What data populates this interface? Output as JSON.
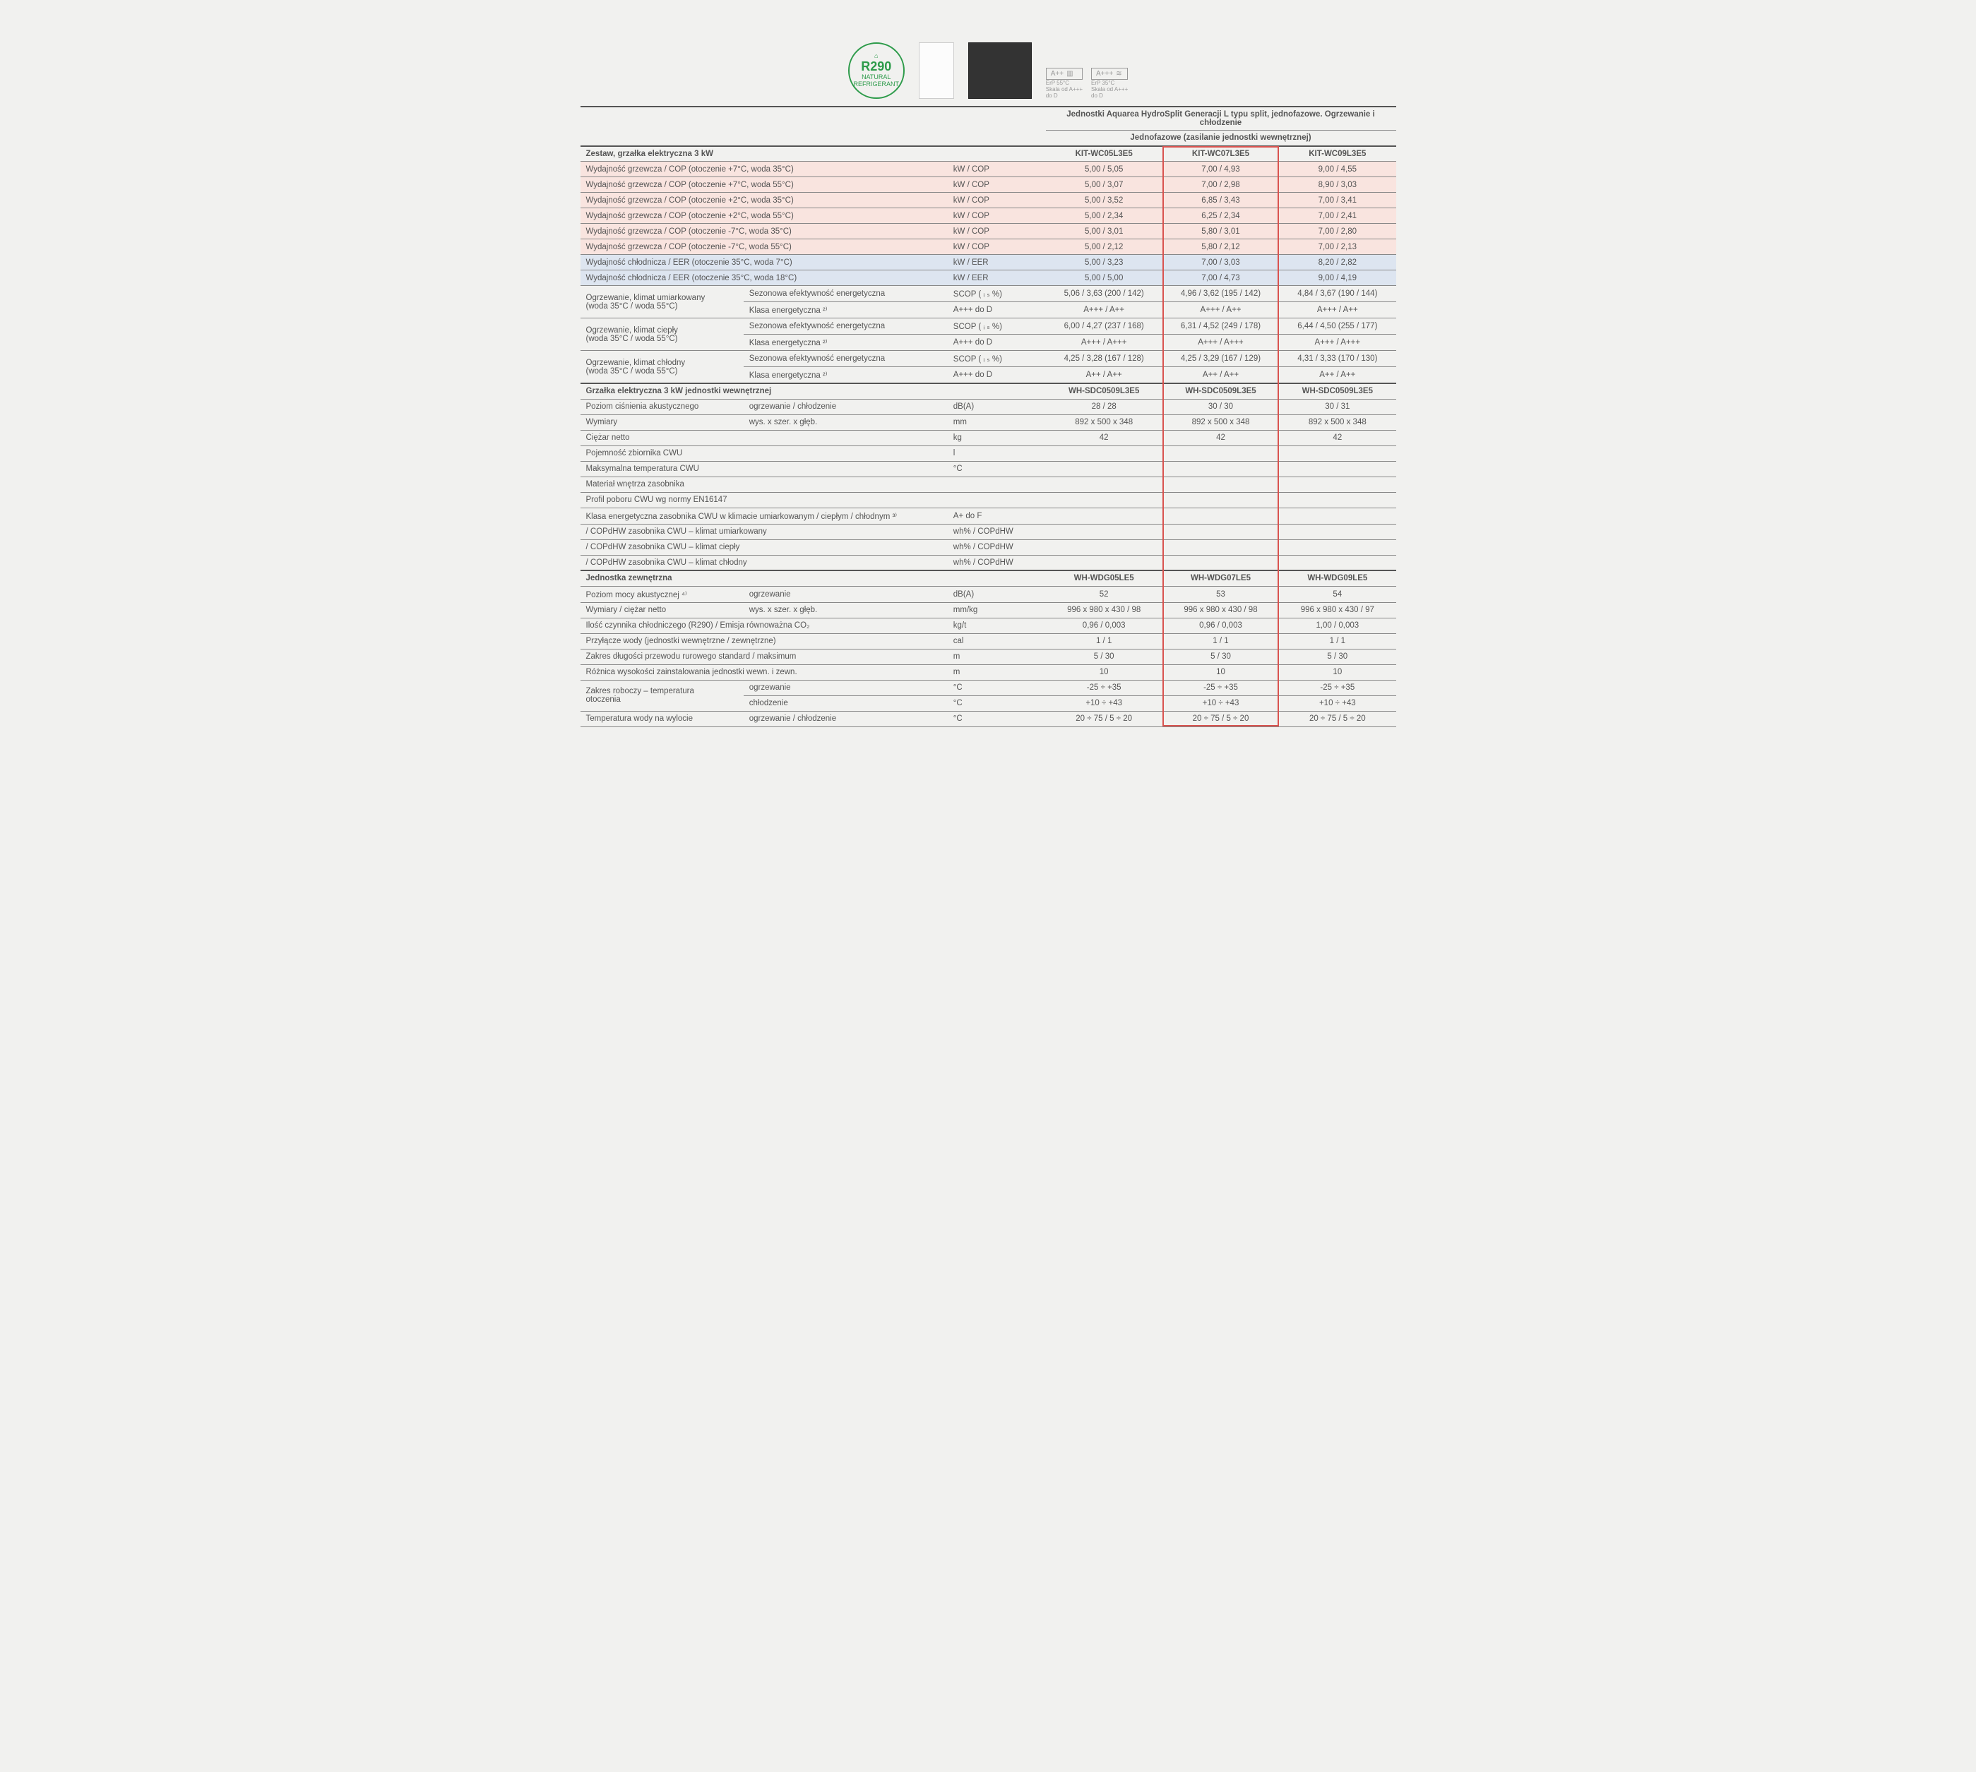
{
  "refrigerant_badge": {
    "main": "R290",
    "sub1": "NATURAL",
    "sub2": "REFRIGERANT"
  },
  "erp1": {
    "class": "A++",
    "line1": "ErP 55°C",
    "line2": "Skala od A+++",
    "line3": "do D"
  },
  "erp2": {
    "class": "A+++",
    "line1": "ErP 35°C",
    "line2": "Skala od A+++",
    "line3": "do D"
  },
  "main_title": "Jednostki Aquarea HydroSplit Generacji L typu split, jednofazowe. Ogrzewanie i chłodzenie",
  "sub_title": "Jednofazowe (zasilanie jednostki wewnętrznej)",
  "kit_header": "Zestaw, grzałka elektryczna 3 kW",
  "kits": [
    "KIT-WC05L3E5",
    "KIT-WC07L3E5",
    "KIT-WC09L3E5"
  ],
  "rows_heat": [
    {
      "label": "Wydajność grzewcza / COP (otoczenie +7°C, woda 35°C)",
      "unit": "kW / COP",
      "vals": [
        "5,00 / 5,05",
        "7,00 / 4,93",
        "9,00 / 4,55"
      ]
    },
    {
      "label": "Wydajność grzewcza / COP (otoczenie +7°C, woda 55°C)",
      "unit": "kW / COP",
      "vals": [
        "5,00 / 3,07",
        "7,00 / 2,98",
        "8,90 / 3,03"
      ]
    },
    {
      "label": "Wydajność grzewcza / COP (otoczenie +2°C, woda 35°C)",
      "unit": "kW / COP",
      "vals": [
        "5,00 / 3,52",
        "6,85 / 3,43",
        "7,00 / 3,41"
      ]
    },
    {
      "label": "Wydajność grzewcza / COP (otoczenie +2°C, woda 55°C)",
      "unit": "kW / COP",
      "vals": [
        "5,00 / 2,34",
        "6,25 / 2,34",
        "7,00 / 2,41"
      ]
    },
    {
      "label": "Wydajność grzewcza / COP (otoczenie -7°C, woda 35°C)",
      "unit": "kW / COP",
      "vals": [
        "5,00 / 3,01",
        "5,80 / 3,01",
        "7,00 / 2,80"
      ]
    },
    {
      "label": "Wydajność grzewcza / COP (otoczenie -7°C, woda 55°C)",
      "unit": "kW / COP",
      "vals": [
        "5,00 / 2,12",
        "5,80 / 2,12",
        "7,00 / 2,13"
      ]
    }
  ],
  "rows_cool": [
    {
      "label": "Wydajność chłodnicza / EER (otoczenie 35°C, woda 7°C)",
      "unit": "kW / EER",
      "vals": [
        "5,00 / 3,23",
        "7,00 / 3,03",
        "8,20 / 2,82"
      ]
    },
    {
      "label": "Wydajność chłodnicza / EER (otoczenie 35°C, woda 18°C)",
      "unit": "kW / EER",
      "vals": [
        "5,00 / 5,00",
        "7,00 / 4,73",
        "9,00 / 4,19"
      ]
    }
  ],
  "climate_rows": [
    {
      "group": "Ogrzewanie, klimat umiarkowany\n(woda 35°C / woda 55°C)",
      "sub": "Sezonowa efektywność energetyczna",
      "unit": "SCOP ( ᵢ ₛ %)",
      "vals": [
        "5,06 / 3,63 (200 / 142)",
        "4,96 / 3,62 (195 / 142)",
        "4,84 / 3,67 (190 / 144)"
      ]
    },
    {
      "group": "",
      "sub": "Klasa energetyczna ²⁾",
      "unit": "A+++ do D",
      "vals": [
        "A+++ / A++",
        "A+++ / A++",
        "A+++ / A++"
      ]
    },
    {
      "group": "Ogrzewanie, klimat ciepły\n(woda 35°C / woda 55°C)",
      "sub": "Sezonowa efektywność energetyczna",
      "unit": "SCOP ( ᵢ ₛ %)",
      "vals": [
        "6,00 / 4,27 (237 / 168)",
        "6,31 / 4,52 (249 / 178)",
        "6,44 / 4,50 (255 / 177)"
      ]
    },
    {
      "group": "",
      "sub": "Klasa energetyczna ²⁾",
      "unit": "A+++ do D",
      "vals": [
        "A+++ / A+++",
        "A+++ / A+++",
        "A+++ / A+++"
      ]
    },
    {
      "group": "Ogrzewanie, klimat chłodny\n(woda 35°C / woda 55°C)",
      "sub": "Sezonowa efektywność energetyczna",
      "unit": "SCOP ( ᵢ ₛ %)",
      "vals": [
        "4,25 / 3,28 (167 / 128)",
        "4,25 / 3,29 (167 / 129)",
        "4,31 / 3,33 (170 / 130)"
      ]
    },
    {
      "group": "",
      "sub": "Klasa energetyczna ²⁾",
      "unit": "A+++ do D",
      "vals": [
        "A++ / A++",
        "A++ / A++",
        "A++ / A++"
      ]
    }
  ],
  "indoor_header": "Grzałka elektryczna 3 kW jednostki wewnętrznej",
  "indoor_models": [
    "WH-SDC0509L3E5",
    "WH-SDC0509L3E5",
    "WH-SDC0509L3E5"
  ],
  "indoor_rows": [
    {
      "label": "Poziom ciśnienia akustycznego",
      "sub": "ogrzewanie / chłodzenie",
      "unit": "dB(A)",
      "vals": [
        "28 / 28",
        "30 / 30",
        "30 / 31"
      ]
    },
    {
      "label": "Wymiary",
      "sub": "wys. x szer. x głęb.",
      "unit": "mm",
      "vals": [
        "892 x 500 x 348",
        "892 x 500 x 348",
        "892 x 500 x 348"
      ]
    },
    {
      "label": "Ciężar netto",
      "sub": "",
      "unit": "kg",
      "vals": [
        "42",
        "42",
        "42"
      ]
    },
    {
      "label": "Pojemność zbiornika CWU",
      "sub": "",
      "unit": "l",
      "vals": [
        "",
        "",
        ""
      ]
    },
    {
      "label": "Maksymalna temperatura CWU",
      "sub": "",
      "unit": "°C",
      "vals": [
        "",
        "",
        ""
      ]
    },
    {
      "label": "Materiał wnętrza zasobnika",
      "sub": "",
      "unit": "",
      "vals": [
        "",
        "",
        ""
      ]
    },
    {
      "label": "Profil poboru CWU wg normy EN16147",
      "sub": "",
      "unit": "",
      "vals": [
        "",
        "",
        ""
      ]
    },
    {
      "label": "Klasa energetyczna zasobnika CWU w klimacie umiarkowanym / ciepłym / chłodnym ³⁾",
      "sub": "",
      "unit": "A+ do F",
      "vals": [
        "",
        "",
        ""
      ]
    },
    {
      "label": "  / COPdHW zasobnika CWU – klimat umiarkowany",
      "sub": "",
      "unit": "wh% / COPdHW",
      "vals": [
        "",
        "",
        ""
      ]
    },
    {
      "label": "  / COPdHW zasobnika CWU – klimat ciepły",
      "sub": "",
      "unit": "wh% / COPdHW",
      "vals": [
        "",
        "",
        ""
      ]
    },
    {
      "label": "  / COPdHW zasobnika CWU – klimat chłodny",
      "sub": "",
      "unit": "wh% / COPdHW",
      "vals": [
        "",
        "",
        ""
      ]
    }
  ],
  "outdoor_header": "Jednostka zewnętrzna",
  "outdoor_models": [
    "WH-WDG05LE5",
    "WH-WDG07LE5",
    "WH-WDG09LE5"
  ],
  "outdoor_rows": [
    {
      "label": "Poziom mocy akustycznej ⁴⁾",
      "sub": "ogrzewanie",
      "unit": "dB(A)",
      "vals": [
        "52",
        "53",
        "54"
      ]
    },
    {
      "label": "Wymiary / ciężar netto",
      "sub": "wys. x szer. x głęb.",
      "unit": "mm/kg",
      "vals": [
        "996 x 980 x 430 / 98",
        "996 x 980 x 430 / 98",
        "996 x 980 x 430 / 97"
      ]
    },
    {
      "label": "Ilość czynnika chłodniczego (R290) / Emisja równoważna CO₂",
      "sub": "",
      "unit": "kg/t",
      "vals": [
        "0,96 / 0,003",
        "0,96 / 0,003",
        "1,00 / 0,003"
      ]
    },
    {
      "label": "Przyłącze wody (jednostki wewnętrzne / zewnętrzne)",
      "sub": "",
      "unit": "cal",
      "vals": [
        "1 / 1",
        "1 / 1",
        "1 / 1"
      ]
    },
    {
      "label": "Zakres długości przewodu rurowego standard / maksimum",
      "sub": "",
      "unit": "m",
      "vals": [
        "5 / 30",
        "5 / 30",
        "5 / 30"
      ]
    },
    {
      "label": "Różnica wysokości zainstalowania jednostki wewn. i zewn.",
      "sub": "",
      "unit": "m",
      "vals": [
        "10",
        "10",
        "10"
      ]
    }
  ],
  "range_rows": [
    {
      "group": "Zakres roboczy – temperatura\notoczenia",
      "sub": "ogrzewanie",
      "unit": "°C",
      "vals": [
        "-25 ÷ +35",
        "-25 ÷ +35",
        "-25 ÷ +35"
      ]
    },
    {
      "group": "",
      "sub": "chłodzenie",
      "unit": "°C",
      "vals": [
        "+10 ÷ +43",
        "+10 ÷ +43",
        "+10 ÷ +43"
      ]
    }
  ],
  "temp_row": {
    "label": "Temperatura wody na wylocie",
    "sub": "ogrzewanie / chłodzenie",
    "unit": "°C",
    "vals": [
      "20 ÷ 75 / 5 ÷ 20",
      "20 ÷ 75 / 5 ÷ 20",
      "20 ÷ 75 / 5 ÷ 20"
    ]
  },
  "colors": {
    "heat_bg": "#f9e4df",
    "cool_bg": "#dde5f0",
    "border": "#888888",
    "highlight": "#d9534f",
    "text": "#555555",
    "page_bg": "#f1f1ef",
    "badge_green": "#2d9b4a"
  }
}
